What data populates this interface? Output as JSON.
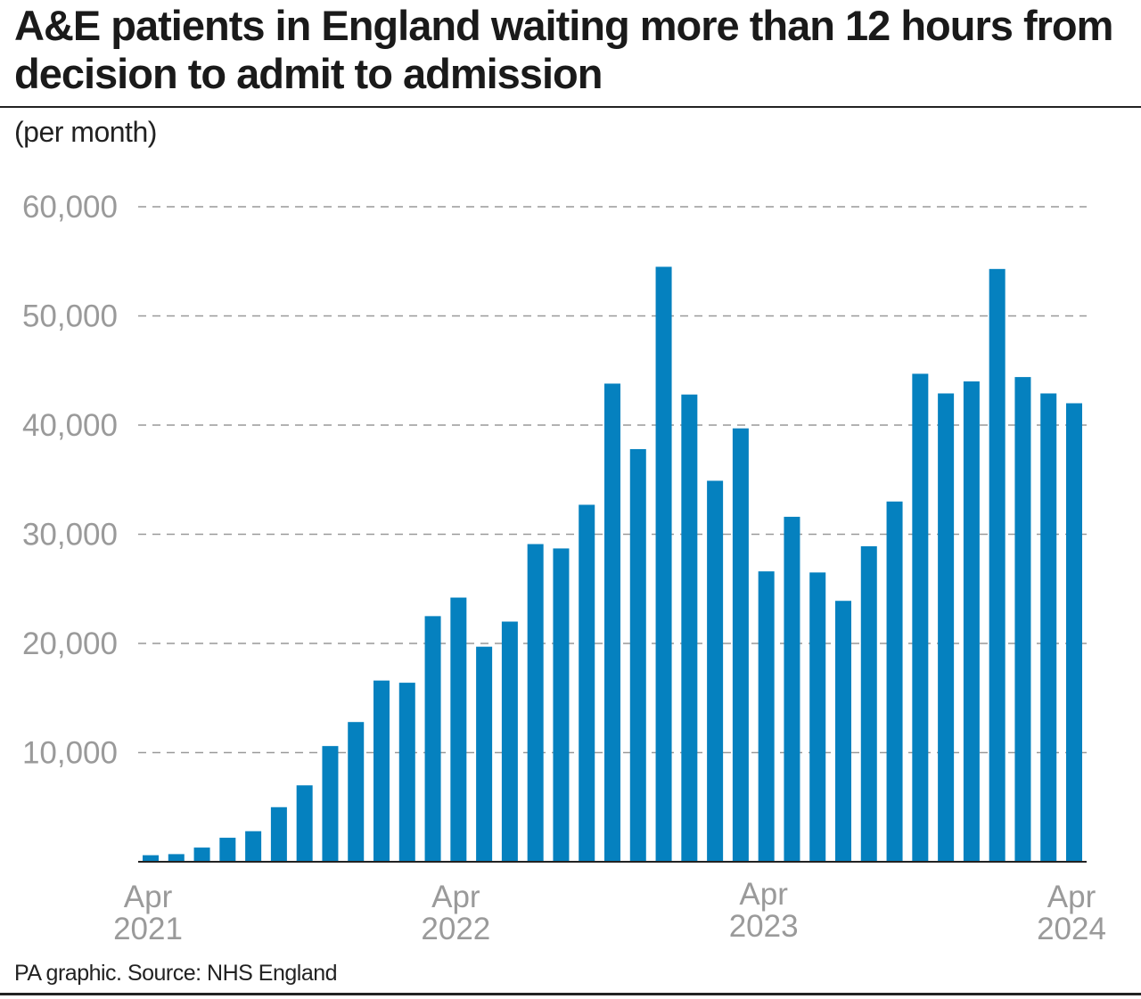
{
  "title": "A&E patients in England waiting more than 12 hours from decision to admit to admission",
  "subtitle": "(per month)",
  "footer": "PA graphic. Source: NHS England",
  "colors": {
    "bar": "#0581bf",
    "grid": "#999999",
    "axis": "#222222",
    "tick_label": "#9a9a9a"
  },
  "chart_data": {
    "type": "bar",
    "title": "A&E patients in England waiting more than 12 hours from decision to admit to admission",
    "subtitle": "(per month)",
    "xlabel": "",
    "ylabel": "",
    "ylim": [
      0,
      60000
    ],
    "yticks": [
      10000,
      20000,
      30000,
      40000,
      50000,
      60000
    ],
    "ytick_labels": [
      "10,000",
      "20,000",
      "30,000",
      "40,000",
      "50,000",
      "60,000"
    ],
    "grid": "horizontal dashed",
    "categories": [
      "Apr 2021",
      "May 2021",
      "Jun 2021",
      "Jul 2021",
      "Aug 2021",
      "Sep 2021",
      "Oct 2021",
      "Nov 2021",
      "Dec 2021",
      "Jan 2022",
      "Feb 2022",
      "Mar 2022",
      "Apr 2022",
      "May 2022",
      "Jun 2022",
      "Jul 2022",
      "Aug 2022",
      "Sep 2022",
      "Oct 2022",
      "Nov 2022",
      "Dec 2022",
      "Jan 2023",
      "Feb 2023",
      "Mar 2023",
      "Apr 2023",
      "May 2023",
      "Jun 2023",
      "Jul 2023",
      "Aug 2023",
      "Sep 2023",
      "Oct 2023",
      "Nov 2023",
      "Dec 2023",
      "Jan 2024",
      "Feb 2024",
      "Mar 2024",
      "Apr 2024"
    ],
    "values": [
      600,
      700,
      1300,
      2200,
      2800,
      5000,
      7000,
      10600,
      12800,
      16600,
      16400,
      22500,
      24200,
      19700,
      22000,
      29100,
      28700,
      32700,
      43800,
      37800,
      54500,
      42800,
      34900,
      39700,
      26600,
      31600,
      26500,
      23900,
      28900,
      33000,
      44700,
      42900,
      44000,
      54300,
      44400,
      42900,
      42000
    ],
    "xtick_labels": [
      {
        "index": 0,
        "month": "Apr",
        "year": "2021"
      },
      {
        "index": 12,
        "month": "Apr",
        "year": "2022"
      },
      {
        "index": 24,
        "month": "Apr",
        "year": "2023"
      },
      {
        "index": 36,
        "month": "Apr",
        "year": "2024"
      }
    ]
  }
}
